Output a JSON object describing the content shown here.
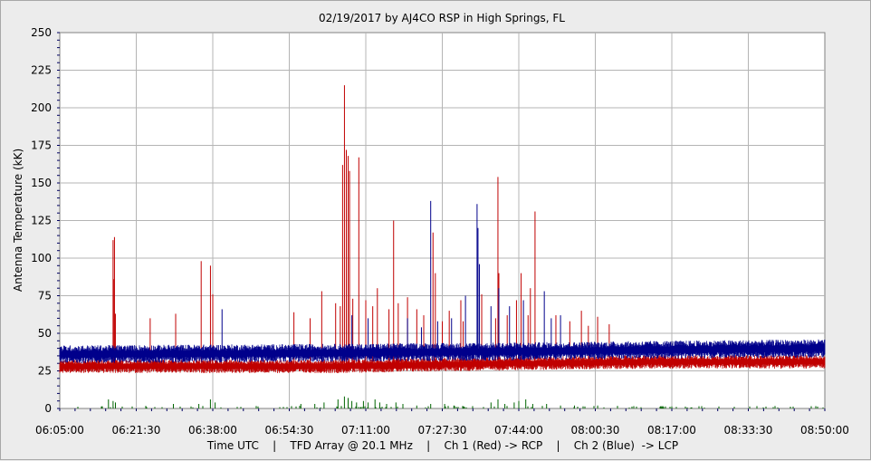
{
  "chart_data": {
    "type": "line",
    "title": "02/19/2017  by  AJ4CO RSP  in  High Springs, FL",
    "ylabel": "Antenna Temperature (kK)",
    "xlabel": "Time UTC    |    TFD Array @ 20.1 MHz    |    Ch 1 (Red) -> RCP    |    Ch 2 (Blue)  -> LCP",
    "ylim": [
      0,
      250
    ],
    "yticks": [
      0,
      25,
      50,
      75,
      100,
      125,
      150,
      175,
      200,
      225,
      250
    ],
    "xticks": [
      "06:05:00",
      "06:21:30",
      "06:38:00",
      "06:54:30",
      "07:11:00",
      "07:27:30",
      "07:44:00",
      "08:00:30",
      "08:17:00",
      "08:33:30",
      "08:50:00"
    ],
    "xrange_minutes": [
      0,
      165
    ],
    "grid": true,
    "series": [
      {
        "color": "#c00000",
        "channel": "Ch 1 (Red)",
        "baseline": [
          [
            0,
            28
          ],
          [
            60,
            28
          ],
          [
            100,
            30
          ],
          [
            130,
            31
          ],
          [
            165,
            31
          ]
        ],
        "spikes": [
          [
            11.5,
            112
          ],
          [
            11.8,
            114
          ],
          [
            11.7,
            86
          ],
          [
            12.0,
            63
          ],
          [
            19.5,
            60
          ],
          [
            25.0,
            63
          ],
          [
            30.5,
            98
          ],
          [
            32.5,
            95
          ],
          [
            33.0,
            76
          ],
          [
            50.5,
            64
          ],
          [
            54.0,
            60
          ],
          [
            56.5,
            78
          ],
          [
            59.5,
            70
          ],
          [
            60.5,
            68
          ],
          [
            61.0,
            162
          ],
          [
            61.4,
            215
          ],
          [
            61.8,
            172
          ],
          [
            62.2,
            168
          ],
          [
            62.5,
            158
          ],
          [
            63.2,
            73
          ],
          [
            64.5,
            167
          ],
          [
            66.0,
            72
          ],
          [
            67.5,
            68
          ],
          [
            68.5,
            80
          ],
          [
            71.0,
            66
          ],
          [
            72.0,
            125
          ],
          [
            73.0,
            70
          ],
          [
            75.0,
            74
          ],
          [
            77.0,
            66
          ],
          [
            78.5,
            62
          ],
          [
            80.5,
            117
          ],
          [
            81.0,
            90
          ],
          [
            82.5,
            58
          ],
          [
            84.0,
            65
          ],
          [
            86.5,
            72
          ],
          [
            87.0,
            58
          ],
          [
            91.0,
            76
          ],
          [
            94.0,
            60
          ],
          [
            94.5,
            154
          ],
          [
            94.7,
            90
          ],
          [
            96.5,
            62
          ],
          [
            98.5,
            72
          ],
          [
            99.5,
            90
          ],
          [
            101.0,
            62
          ],
          [
            101.5,
            80
          ],
          [
            102.5,
            131
          ],
          [
            107.0,
            62
          ],
          [
            110.0,
            58
          ],
          [
            112.5,
            65
          ],
          [
            114.0,
            55
          ],
          [
            116.0,
            61
          ],
          [
            118.5,
            56
          ]
        ]
      },
      {
        "color": "#00008b",
        "channel": "Ch 2 (Blue)",
        "baseline": [
          [
            0,
            36
          ],
          [
            60,
            37
          ],
          [
            100,
            38
          ],
          [
            130,
            39
          ],
          [
            165,
            40
          ]
        ],
        "spikes": [
          [
            35.0,
            66
          ],
          [
            63.0,
            62
          ],
          [
            66.5,
            60
          ],
          [
            75.0,
            60
          ],
          [
            78.0,
            54
          ],
          [
            80.0,
            138
          ],
          [
            81.5,
            58
          ],
          [
            84.5,
            60
          ],
          [
            87.5,
            75
          ],
          [
            90.0,
            136
          ],
          [
            90.2,
            120
          ],
          [
            90.5,
            96
          ],
          [
            93.0,
            68
          ],
          [
            94.7,
            80
          ],
          [
            97.0,
            68
          ],
          [
            100.0,
            72
          ],
          [
            104.5,
            78
          ],
          [
            106.0,
            60
          ],
          [
            108.0,
            62
          ]
        ]
      }
    ],
    "diff_bursts": [
      [
        10.5,
        6
      ],
      [
        11.5,
        5
      ],
      [
        12.0,
        4
      ],
      [
        24.5,
        3
      ],
      [
        30.0,
        3
      ],
      [
        32.5,
        6
      ],
      [
        33.5,
        4
      ],
      [
        52.0,
        3
      ],
      [
        55.0,
        3
      ],
      [
        57.0,
        4
      ],
      [
        60.0,
        6
      ],
      [
        61.4,
        8
      ],
      [
        62.2,
        7
      ],
      [
        63.0,
        5
      ],
      [
        64.0,
        4
      ],
      [
        65.5,
        5
      ],
      [
        66.5,
        4
      ],
      [
        68.0,
        6
      ],
      [
        69.0,
        4
      ],
      [
        70.5,
        3
      ],
      [
        72.5,
        4
      ],
      [
        74.0,
        3
      ],
      [
        77.0,
        2
      ],
      [
        80.0,
        3
      ],
      [
        83.0,
        3
      ],
      [
        85.0,
        2
      ],
      [
        93.0,
        4
      ],
      [
        94.5,
        6
      ],
      [
        96.0,
        3
      ],
      [
        98.0,
        4
      ],
      [
        99.0,
        5
      ],
      [
        100.5,
        6
      ],
      [
        102.0,
        3
      ],
      [
        105.0,
        3
      ],
      [
        108.0,
        2
      ],
      [
        111.0,
        2
      ],
      [
        116.0,
        2
      ]
    ],
    "diff_color": "#006400"
  }
}
